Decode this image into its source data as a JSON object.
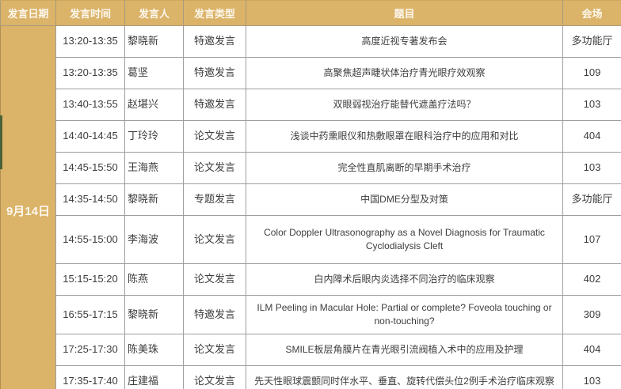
{
  "colors": {
    "header_bg": "#DBB369",
    "header_text": "#FDF8EE",
    "border": "#9E9E9E",
    "body_text": "#3D3D3D",
    "left_marker_green": "#4A6137"
  },
  "table": {
    "columns": [
      {
        "key": "date",
        "label": "发言日期"
      },
      {
        "key": "time",
        "label": "发言时间"
      },
      {
        "key": "speaker",
        "label": "发言人"
      },
      {
        "key": "type",
        "label": "发言类型"
      },
      {
        "key": "title",
        "label": "题目"
      },
      {
        "key": "venue",
        "label": "会场"
      }
    ],
    "date_group": "9月14日",
    "rows": [
      {
        "time": "13:20-13:35",
        "speaker": "黎晓新",
        "type": "特邀发言",
        "title": "高度近视专著发布会",
        "venue": "多功能厅"
      },
      {
        "time": "13:20-13:35",
        "speaker": "葛坚",
        "type": "特邀发言",
        "title": "高聚焦超声睫状体治疗青光眼疗效观察",
        "venue": "109"
      },
      {
        "time": "13:40-13:55",
        "speaker": "赵堪兴",
        "type": "特邀发言",
        "title": "双眼弱视治疗能替代遮盖疗法吗？",
        "venue": "103"
      },
      {
        "time": "14:40-14:45",
        "speaker": "丁玲玲",
        "type": "论文发言",
        "title": "浅谈中药熏眼仪和热敷眼罩在眼科治疗中的应用和对比",
        "venue": "404"
      },
      {
        "time": "14:45-15:50",
        "speaker": "王海燕",
        "type": "论文发言",
        "title": "完全性直肌离断的早期手术治疗",
        "venue": "103"
      },
      {
        "time": "14:35-14:50",
        "speaker": "黎晓新",
        "type": "专题发言",
        "title": "中国DME分型及对策",
        "venue": "多功能厅"
      },
      {
        "time": "14:55-15:00",
        "speaker": "李海波",
        "type": "论文发言",
        "title": "Color Doppler Ultrasonography as a Novel Diagnosis for Traumatic Cyclodialysis Cleft",
        "venue": "107"
      },
      {
        "time": "15:15-15:20",
        "speaker": "陈燕",
        "type": "论文发言",
        "title": "白内障术后眼内炎选择不同治疗的临床观察",
        "venue": "402"
      },
      {
        "time": "16:55-17:15",
        "speaker": "黎晓新",
        "type": "特邀发言",
        "title": "ILM Peeling in Macular Hole: Partial or complete? Foveola touching or non-touching?",
        "venue": "309"
      },
      {
        "time": "17:25-17:30",
        "speaker": "陈美珠",
        "type": "论文发言",
        "title": "SMILE板层角膜片在青光眼引流阀植入术中的应用及护理",
        "venue": "404"
      },
      {
        "time": "17:35-17:40",
        "speaker": "庄建福",
        "type": "论文发言",
        "title": "先天性眼球震颤同时伴水平、垂直、旋转代偿头位2例手术治疗临床观察",
        "venue": "103"
      }
    ]
  }
}
